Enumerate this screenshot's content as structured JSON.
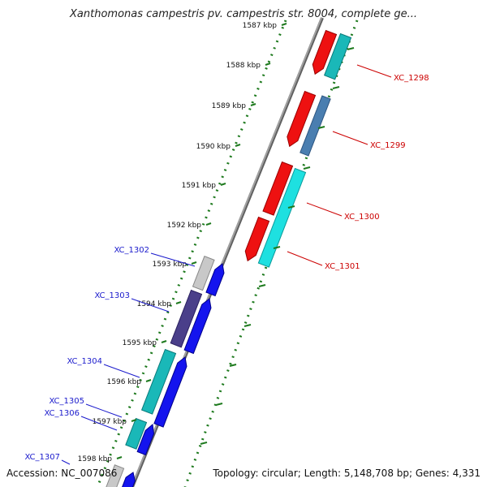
{
  "title": "Xanthomonas campestris pv. campestris str. 8004, complete ge...",
  "accession": "Accession: NC_007086",
  "topology": "Topology: circular; Length: 5,148,708 bp; Genes: 4,331",
  "ticks": [
    "1587 kbp",
    "1588 kbp",
    "1589 kbp",
    "1590 kbp",
    "1591 kbp",
    "1592 kbp",
    "1593 kbp",
    "1594 kbp",
    "1595 kbp",
    "1596 kbp",
    "1597 kbp",
    "1598 kbp"
  ],
  "genes_right": [
    {
      "label": "XC_1298",
      "color": "#cc0000"
    },
    {
      "label": "XC_1299",
      "color": "#cc0000"
    },
    {
      "label": "XC_1300",
      "color": "#cc0000"
    },
    {
      "label": "XC_1301",
      "color": "#cc0000"
    }
  ],
  "genes_left": [
    {
      "label": "XC_1302",
      "color": "#1a1acc"
    },
    {
      "label": "XC_1303",
      "color": "#1a1acc"
    },
    {
      "label": "XC_1304",
      "color": "#1a1acc"
    },
    {
      "label": "XC_1305",
      "color": "#1a1acc"
    },
    {
      "label": "XC_1306",
      "color": "#1a1acc"
    },
    {
      "label": "XC_1307",
      "color": "#1a1acc"
    }
  ],
  "colors": {
    "backbone": "#888888",
    "dots": "#1e7a1e",
    "red": "#ee1111",
    "cyan": "#1ee0e0",
    "teal": "#1ab8b8",
    "blue": "#1414ee",
    "steel": "#4a7eb0",
    "purple": "#4a3f8a",
    "gray": "#c8c8c8"
  }
}
